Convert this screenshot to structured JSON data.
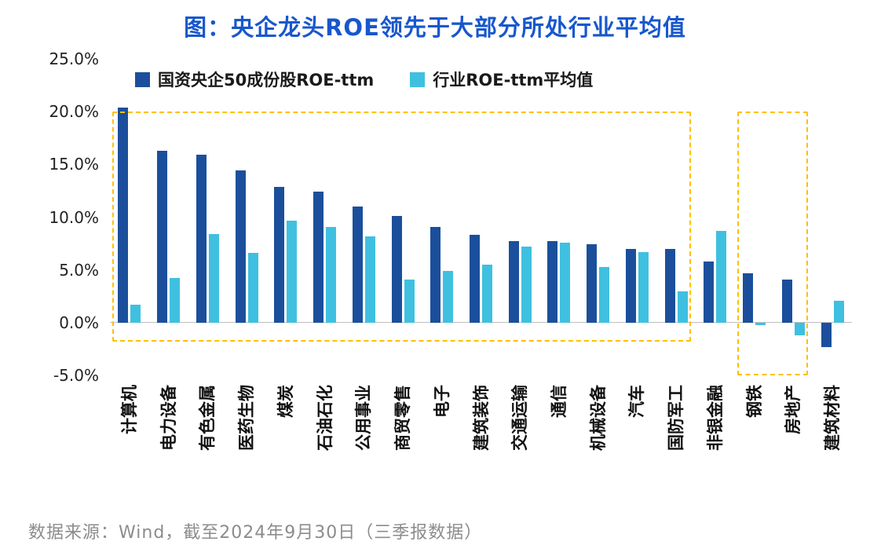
{
  "title": "图：央企龙头ROE领先于大部分所处行业平均值",
  "footer": "数据来源：Wind，截至2024年9月30日（三季报数据）",
  "colors": {
    "title_blue": "#1757CD",
    "series_dark_blue": "#1B4F9C",
    "series_cyan": "#3FC0E0",
    "highlight_dashed": "#FFC000",
    "zero_line_gray": "#BFBFBF",
    "footer_gray": "#8C8C8C"
  },
  "legend": [
    {
      "label": "国资央企50成份股ROE-ttm",
      "color": "#1B4F9C"
    },
    {
      "label": "行业ROE-ttm平均值",
      "color": "#3FC0E0"
    }
  ],
  "chart_data": {
    "type": "bar",
    "title": "图：央企龙头ROE领先于大部分所处行业平均值",
    "xlabel": "",
    "ylabel": "",
    "ylim": [
      -5,
      25
    ],
    "yticks": [
      "25.0%",
      "20.0%",
      "15.0%",
      "10.0%",
      "5.0%",
      "0.0%",
      "-5.0%"
    ],
    "grid": false,
    "legend_position": "top-left",
    "categories": [
      "计算机",
      "电力设备",
      "有色金属",
      "医药生物",
      "煤炭",
      "石油石化",
      "公用事业",
      "商贸零售",
      "电子",
      "建筑装饰",
      "交通运输",
      "通信",
      "机械设备",
      "汽车",
      "国防军工",
      "非银金融",
      "钢铁",
      "房地产",
      "建筑材料"
    ],
    "series": [
      {
        "name": "国资央企50成份股ROE-ttm",
        "color": "#1B4F9C",
        "values": [
          20.4,
          16.3,
          15.9,
          14.4,
          12.9,
          12.4,
          11.0,
          10.1,
          9.1,
          8.3,
          7.7,
          7.7,
          7.4,
          7.0,
          7.0,
          5.8,
          4.7,
          4.1,
          -2.3
        ]
      },
      {
        "name": "行业ROE-ttm平均值",
        "color": "#3FC0E0",
        "values": [
          1.7,
          4.2,
          8.4,
          6.6,
          9.7,
          9.1,
          8.2,
          4.1,
          4.9,
          5.5,
          7.2,
          7.6,
          5.3,
          6.7,
          3.0,
          8.7,
          -0.2,
          -1.2,
          2.1
        ]
      }
    ],
    "annotations": [
      {
        "type": "dashed-rect",
        "color": "#FFC000",
        "from_category": 0,
        "to_category": 14,
        "top": 20,
        "bottom": -1.5
      },
      {
        "type": "dashed-rect",
        "color": "#FFC000",
        "from_category": 16,
        "to_category": 17,
        "top": 20,
        "bottom": -4.7
      }
    ]
  }
}
